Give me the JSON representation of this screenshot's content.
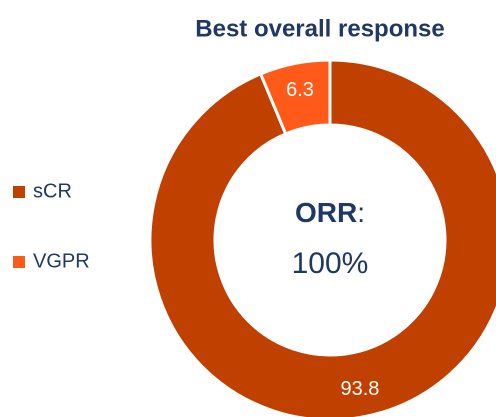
{
  "chart_data": {
    "type": "donut",
    "title": "Best overall response",
    "categories": [
      "sCR",
      "VGPR"
    ],
    "values": [
      93.8,
      6.3
    ],
    "colors": [
      "#c04000",
      "#ff5a1a"
    ],
    "center_text": [
      "ORR",
      ":",
      "100%"
    ],
    "legend": "left"
  }
}
